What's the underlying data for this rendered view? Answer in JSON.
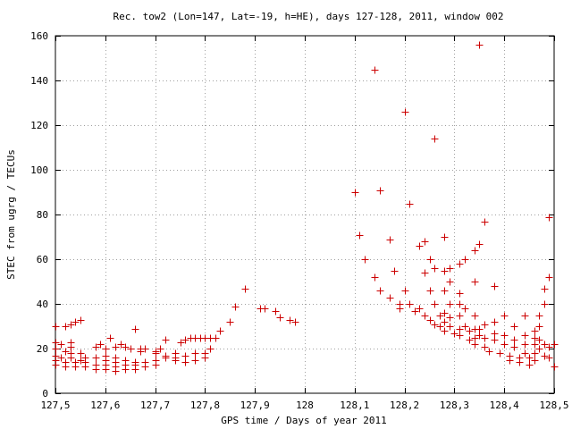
{
  "chart_data": {
    "type": "scatter",
    "title": "Rec. tow2 (Lon=147, Lat=-19, h=HE), days 127-128, 2011, window 002",
    "xlabel": "GPS time / Days of year 2011",
    "ylabel": "STEC from ugrg / TECUs",
    "xlim": [
      127.5,
      128.5
    ],
    "ylim": [
      0,
      160
    ],
    "grid": true,
    "marker": "plus",
    "marker_color": "#cc0000",
    "x_ticks": [
      127.5,
      127.6,
      127.7,
      127.8,
      127.9,
      128,
      128.1,
      128.2,
      128.3,
      128.4,
      128.5
    ],
    "x_tick_labels": [
      "127,5",
      "127,6",
      "127,7",
      "127,8",
      "127,9",
      "128",
      "128,1",
      "128,2",
      "128,3",
      "128,4",
      "128,5"
    ],
    "y_ticks": [
      0,
      20,
      40,
      60,
      80,
      100,
      120,
      140,
      160
    ],
    "y_tick_labels": [
      "0",
      "20",
      "40",
      "60",
      "80",
      "100",
      "120",
      "140",
      "160"
    ],
    "series": [
      {
        "points": [
          [
            127.5,
            30
          ],
          [
            127.52,
            30
          ],
          [
            127.53,
            31
          ],
          [
            127.54,
            32
          ],
          [
            127.55,
            33
          ],
          [
            127.5,
            23
          ],
          [
            127.51,
            22
          ],
          [
            127.53,
            23
          ],
          [
            127.53,
            21
          ],
          [
            127.5,
            20
          ],
          [
            127.52,
            19
          ],
          [
            127.53,
            18
          ],
          [
            127.55,
            18
          ],
          [
            127.5,
            17
          ],
          [
            127.51,
            16
          ],
          [
            127.53,
            16
          ],
          [
            127.55,
            15
          ],
          [
            127.56,
            16
          ],
          [
            127.58,
            16
          ],
          [
            127.5,
            15
          ],
          [
            127.52,
            14
          ],
          [
            127.54,
            14
          ],
          [
            127.56,
            14
          ],
          [
            127.58,
            13
          ],
          [
            127.6,
            13
          ],
          [
            127.5,
            13
          ],
          [
            127.52,
            12
          ],
          [
            127.54,
            12
          ],
          [
            127.56,
            12
          ],
          [
            127.58,
            11
          ],
          [
            127.6,
            11
          ],
          [
            127.62,
            10
          ],
          [
            127.58,
            21
          ],
          [
            127.59,
            22
          ],
          [
            127.6,
            20
          ],
          [
            127.61,
            25
          ],
          [
            127.62,
            21
          ],
          [
            127.63,
            22
          ],
          [
            127.64,
            21
          ],
          [
            127.65,
            20
          ],
          [
            127.67,
            20
          ],
          [
            127.6,
            17
          ],
          [
            127.62,
            16
          ],
          [
            127.64,
            15
          ],
          [
            127.66,
            14
          ],
          [
            127.68,
            14
          ],
          [
            127.7,
            15
          ],
          [
            127.6,
            15
          ],
          [
            127.62,
            14
          ],
          [
            127.64,
            13
          ],
          [
            127.66,
            13
          ],
          [
            127.68,
            12
          ],
          [
            127.62,
            12
          ],
          [
            127.64,
            11
          ],
          [
            127.66,
            11
          ],
          [
            127.68,
            12
          ],
          [
            127.7,
            13
          ],
          [
            127.66,
            29
          ],
          [
            127.67,
            19
          ],
          [
            127.68,
            20
          ],
          [
            127.7,
            19
          ],
          [
            127.71,
            20
          ],
          [
            127.72,
            24
          ],
          [
            127.7,
            18
          ],
          [
            127.72,
            17
          ],
          [
            127.74,
            18
          ],
          [
            127.75,
            23
          ],
          [
            127.76,
            24
          ],
          [
            127.77,
            25
          ],
          [
            127.78,
            25
          ],
          [
            127.79,
            25
          ],
          [
            127.8,
            25
          ],
          [
            127.81,
            25
          ],
          [
            127.82,
            25
          ],
          [
            127.83,
            28
          ],
          [
            127.72,
            16
          ],
          [
            127.74,
            16
          ],
          [
            127.76,
            17
          ],
          [
            127.78,
            18
          ],
          [
            127.8,
            18
          ],
          [
            127.81,
            20
          ],
          [
            127.74,
            15
          ],
          [
            127.76,
            14
          ],
          [
            127.78,
            15
          ],
          [
            127.8,
            16
          ],
          [
            127.85,
            32
          ],
          [
            127.86,
            39
          ],
          [
            127.88,
            47
          ],
          [
            127.91,
            38
          ],
          [
            127.92,
            38
          ],
          [
            127.94,
            37
          ],
          [
            127.95,
            34
          ],
          [
            127.97,
            33
          ],
          [
            127.98,
            32
          ],
          [
            128.1,
            90
          ],
          [
            128.11,
            71
          ],
          [
            128.12,
            60
          ],
          [
            128.14,
            145
          ],
          [
            128.14,
            52
          ],
          [
            128.15,
            91
          ],
          [
            128.15,
            46
          ],
          [
            128.17,
            69
          ],
          [
            128.17,
            43
          ],
          [
            128.18,
            55
          ],
          [
            128.19,
            40
          ],
          [
            128.19,
            38
          ],
          [
            128.2,
            126
          ],
          [
            128.2,
            46
          ],
          [
            128.21,
            85
          ],
          [
            128.21,
            40
          ],
          [
            128.22,
            37
          ],
          [
            128.23,
            66
          ],
          [
            128.23,
            38
          ],
          [
            128.24,
            68
          ],
          [
            128.24,
            54
          ],
          [
            128.24,
            35
          ],
          [
            128.25,
            60
          ],
          [
            128.25,
            46
          ],
          [
            128.25,
            33
          ],
          [
            128.26,
            114
          ],
          [
            128.26,
            56
          ],
          [
            128.26,
            40
          ],
          [
            128.26,
            31
          ],
          [
            128.27,
            35
          ],
          [
            128.27,
            30
          ],
          [
            128.28,
            70
          ],
          [
            128.28,
            55
          ],
          [
            128.28,
            46
          ],
          [
            128.28,
            36
          ],
          [
            128.28,
            32
          ],
          [
            128.28,
            28
          ],
          [
            128.29,
            56
          ],
          [
            128.29,
            50
          ],
          [
            128.29,
            40
          ],
          [
            128.29,
            34
          ],
          [
            128.29,
            30
          ],
          [
            128.3,
            27
          ],
          [
            128.31,
            58
          ],
          [
            128.31,
            45
          ],
          [
            128.31,
            40
          ],
          [
            128.31,
            35
          ],
          [
            128.31,
            29
          ],
          [
            128.31,
            26
          ],
          [
            128.32,
            60
          ],
          [
            128.32,
            38
          ],
          [
            128.32,
            30
          ],
          [
            128.33,
            28
          ],
          [
            128.33,
            24
          ],
          [
            128.34,
            64
          ],
          [
            128.34,
            50
          ],
          [
            128.34,
            35
          ],
          [
            128.34,
            29
          ],
          [
            128.34,
            25
          ],
          [
            128.34,
            22
          ],
          [
            128.35,
            156
          ],
          [
            128.35,
            67
          ],
          [
            128.35,
            29
          ],
          [
            128.35,
            26
          ],
          [
            128.36,
            77
          ],
          [
            128.36,
            31
          ],
          [
            128.36,
            25
          ],
          [
            128.36,
            21
          ],
          [
            128.37,
            19
          ],
          [
            128.38,
            48
          ],
          [
            128.38,
            32
          ],
          [
            128.38,
            27
          ],
          [
            128.38,
            24
          ],
          [
            128.39,
            18
          ],
          [
            128.4,
            35
          ],
          [
            128.4,
            26
          ],
          [
            128.4,
            22
          ],
          [
            128.41,
            17
          ],
          [
            128.41,
            15
          ],
          [
            128.42,
            30
          ],
          [
            128.42,
            24
          ],
          [
            128.42,
            21
          ],
          [
            128.43,
            16
          ],
          [
            128.43,
            14
          ],
          [
            128.44,
            35
          ],
          [
            128.44,
            26
          ],
          [
            128.44,
            22
          ],
          [
            128.44,
            18
          ],
          [
            128.45,
            16
          ],
          [
            128.45,
            13
          ],
          [
            128.46,
            28
          ],
          [
            128.46,
            25
          ],
          [
            128.46,
            22
          ],
          [
            128.46,
            18
          ],
          [
            128.46,
            15
          ],
          [
            128.47,
            35
          ],
          [
            128.47,
            30
          ],
          [
            128.47,
            24
          ],
          [
            128.47,
            20
          ],
          [
            128.48,
            47
          ],
          [
            128.48,
            40
          ],
          [
            128.48,
            22
          ],
          [
            128.48,
            17
          ],
          [
            128.49,
            79
          ],
          [
            128.49,
            52
          ],
          [
            128.49,
            21
          ],
          [
            128.49,
            16
          ],
          [
            128.5,
            12
          ],
          [
            128.5,
            22
          ]
        ]
      }
    ]
  }
}
